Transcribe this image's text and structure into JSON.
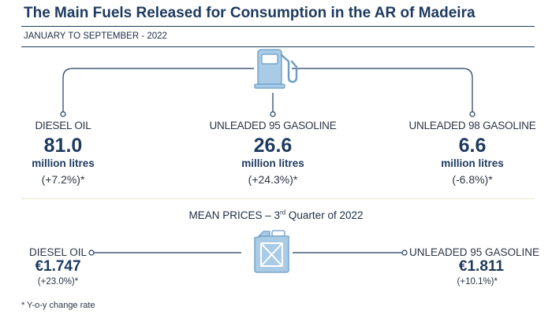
{
  "title": "The Main Fuels Released for Consumption in the AR of Madeira",
  "subtitle": "JANUARY TO SEPTEMBER - 2022",
  "fuels": [
    {
      "name": "DIESEL OIL",
      "value": "81.0",
      "unit": "million litres",
      "change": "(+7.2%)*"
    },
    {
      "name": "UNLEADED 95 GASOLINE",
      "value": "26.6",
      "unit": "million litres",
      "change": "(+24.3%)*"
    },
    {
      "name": "UNLEADED 98 GASOLINE",
      "value": "6.6",
      "unit": "million litres",
      "change": "(-6.8%)*"
    }
  ],
  "prices": {
    "title_main": "MEAN PRICES – 3",
    "title_sup": "rd",
    "title_rest": " Quarter of 2022",
    "items": [
      {
        "name": "DIESEL OIL",
        "value": "€1.747",
        "change": "(+23.0%)*"
      },
      {
        "name": "UNLEADED 95 GASOLINE",
        "value": "€1.811",
        "change": "(+10.1%)*"
      }
    ]
  },
  "footnote": "* Y-o-y change rate",
  "icons": {
    "top": "fuel-pump-icon",
    "bottom": "jerrycan-icon"
  },
  "colors": {
    "title": "#1e3a5f",
    "value": "#1e3a5f",
    "line": "#1e3a5f",
    "icon_fill": "#a9cbe6",
    "icon_stroke": "#6a9cc5",
    "divider": "#e8e6c8"
  }
}
